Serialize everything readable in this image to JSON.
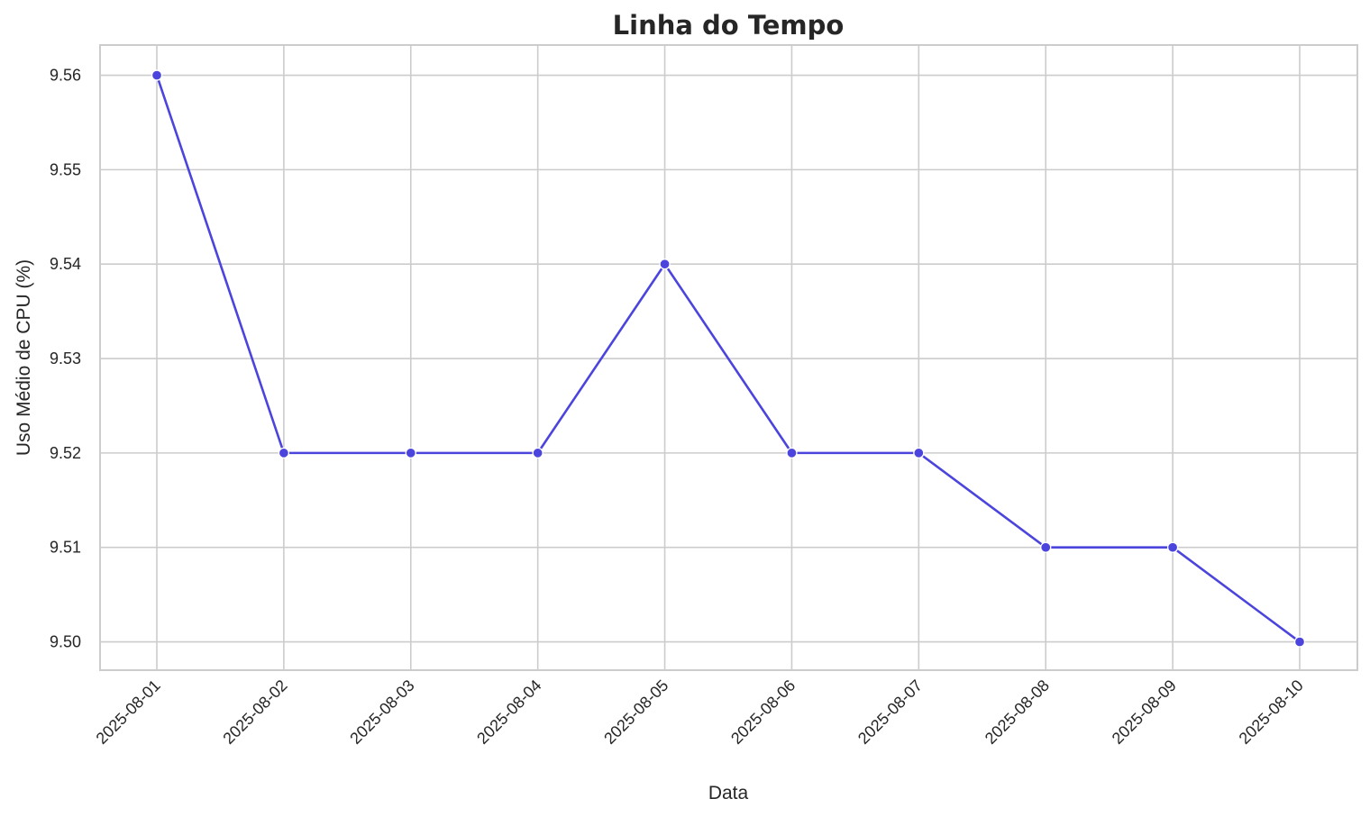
{
  "chart_data": {
    "type": "line",
    "title": "Linha do Tempo",
    "xlabel": "Data",
    "ylabel": "Uso Médio de CPU (%)",
    "x": [
      "2025-08-01",
      "2025-08-02",
      "2025-08-03",
      "2025-08-04",
      "2025-08-05",
      "2025-08-06",
      "2025-08-07",
      "2025-08-08",
      "2025-08-09",
      "2025-08-10"
    ],
    "series": [
      {
        "values": [
          9.56,
          9.52,
          9.52,
          9.52,
          9.54,
          9.52,
          9.52,
          9.51,
          9.51,
          9.5
        ],
        "color": "#4b44dd",
        "marker": "circle"
      }
    ],
    "yticks": [
      "9.50",
      "9.51",
      "9.52",
      "9.53",
      "9.54",
      "9.55",
      "9.56"
    ],
    "ylim": [
      9.497,
      9.5632
    ],
    "grid": true,
    "legend": "none"
  }
}
